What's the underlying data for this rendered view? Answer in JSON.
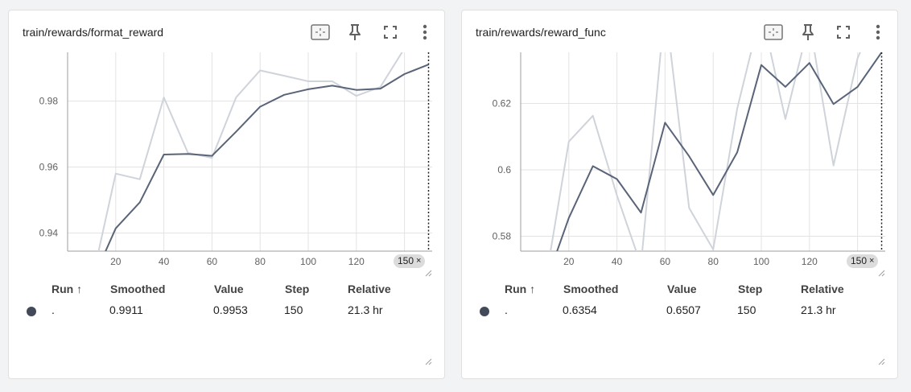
{
  "cards": [
    {
      "title": "train/rewards/format_reward",
      "toolbar": {
        "icons": [
          "fit-domain-icon",
          "pin-icon",
          "fullscreen-icon",
          "more-vert-icon"
        ]
      },
      "step_badge": {
        "label": "150",
        "close": "×"
      },
      "table": {
        "headers": {
          "run": "Run ↑",
          "smoothed": "Smoothed",
          "value": "Value",
          "step": "Step",
          "relative": "Relative"
        },
        "row": {
          "run": ".",
          "smoothed": "0.9911",
          "value": "0.9953",
          "step": "150",
          "relative": "21.3 hr"
        }
      },
      "chart_data": {
        "type": "line",
        "x_ticks": [
          "20",
          "40",
          "60",
          "80",
          "100",
          "120",
          "140"
        ],
        "y_ticks": [
          "0.94",
          "0.96",
          "0.98"
        ],
        "xlim": [
          0,
          151.5
        ],
        "ylim": [
          0.9345,
          0.9948
        ],
        "cursor_step": 150,
        "series": [
          {
            "role": "raw",
            "color": "#cfd3da",
            "x": [
              10,
              20,
              30,
              40,
              50,
              60,
              70,
              80,
              90,
              100,
              110,
              120,
              130,
              140,
              150
            ],
            "y": [
              0.925,
              0.958,
              0.9563,
              0.9811,
              0.9643,
              0.9628,
              0.9811,
              0.9893,
              0.9877,
              0.986,
              0.986,
              0.9816,
              0.9843,
              0.996,
              0.9953
            ]
          },
          {
            "role": "smoothed",
            "color": "#5a6478",
            "x": [
              10,
              20,
              30,
              40,
              50,
              60,
              70,
              80,
              90,
              100,
              110,
              120,
              130,
              140,
              150
            ],
            "y": [
              0.925,
              0.9414,
              0.9493,
              0.9638,
              0.964,
              0.9634,
              0.9707,
              0.9783,
              0.9819,
              0.9836,
              0.9847,
              0.9834,
              0.9838,
              0.9882,
              0.9911
            ]
          }
        ]
      }
    },
    {
      "title": "train/rewards/reward_func",
      "toolbar": {
        "icons": [
          "fit-domain-icon",
          "pin-icon",
          "fullscreen-icon",
          "more-vert-icon"
        ]
      },
      "step_badge": {
        "label": "150",
        "close": "×"
      },
      "table": {
        "headers": {
          "run": "Run ↑",
          "smoothed": "Smoothed",
          "value": "Value",
          "step": "Step",
          "relative": "Relative"
        },
        "row": {
          "run": ".",
          "smoothed": "0.6354",
          "value": "0.6507",
          "step": "150",
          "relative": "21.3 hr"
        }
      },
      "chart_data": {
        "type": "line",
        "x_ticks": [
          "20",
          "40",
          "60",
          "80",
          "100",
          "120",
          "140"
        ],
        "y_ticks": [
          "0.58",
          "0.6",
          "0.62"
        ],
        "xlim": [
          0,
          151.5
        ],
        "ylim": [
          0.5755,
          0.6354
        ],
        "cursor_step": 150,
        "series": [
          {
            "role": "raw",
            "color": "#cfd3da",
            "x": [
              10,
              20,
              30,
              40,
              50,
              60,
              70,
              80,
              90,
              100,
              110,
              120,
              130,
              140,
              150
            ],
            "y": [
              0.565,
              0.6085,
              0.6163,
              0.5923,
              0.5713,
              0.6498,
              0.5885,
              0.576,
              0.6185,
              0.648,
              0.6153,
              0.6446,
              0.6013,
              0.6336,
              0.6507
            ]
          },
          {
            "role": "smoothed",
            "color": "#5a6478",
            "x": [
              10,
              20,
              30,
              40,
              50,
              60,
              70,
              80,
              90,
              100,
              110,
              120,
              130,
              140,
              150
            ],
            "y": [
              0.565,
              0.5855,
              0.6011,
              0.5972,
              0.5871,
              0.6142,
              0.6041,
              0.5924,
              0.6053,
              0.6316,
              0.625,
              0.6322,
              0.6198,
              0.625,
              0.6354
            ]
          }
        ]
      }
    }
  ]
}
